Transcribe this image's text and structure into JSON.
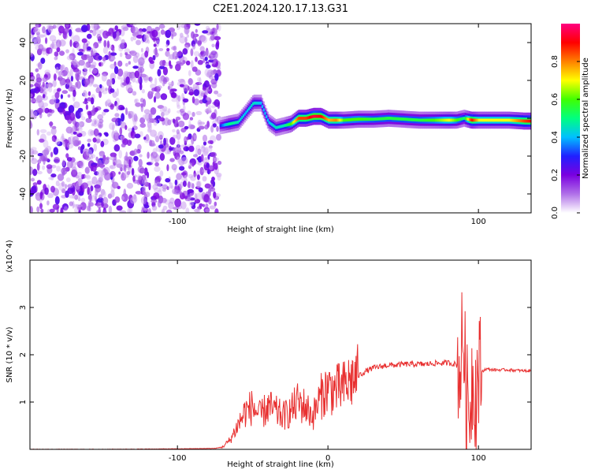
{
  "figure": {
    "title": "C2E1.2024.120.17.13.G31"
  },
  "chart_data": [
    {
      "type": "heatmap",
      "xlabel": "Height of straight line (km)",
      "ylabel": "Frequency (Hz)",
      "xlim": [
        -198,
        135
      ],
      "ylim": [
        -50,
        50
      ],
      "x_ticks": [
        -100,
        0,
        100
      ],
      "x_tick_labels": [
        "-100",
        "",
        "100"
      ],
      "y_ticks": [
        -40,
        -20,
        0,
        20,
        40
      ],
      "y_tick_labels": [
        "-40",
        "-20",
        "0",
        "20",
        "40"
      ],
      "colorbar": {
        "label": "Normalized spectral amplitude",
        "range": [
          0,
          1
        ],
        "ticks": [
          0.0,
          0.2,
          0.4,
          0.6,
          0.8
        ],
        "tick_labels": [
          "0.0",
          "0.2",
          "0.4",
          "0.6",
          "0.8"
        ],
        "colormap": [
          "#ffffff",
          "#b070e8",
          "#7a00e0",
          "#2020ff",
          "#00c0ff",
          "#00ff80",
          "#40ff00",
          "#ffff00",
          "#ff8000",
          "#ff0000",
          "#ff0080"
        ]
      },
      "noise_region_x": [
        -198,
        -72
      ],
      "signal_track": {
        "x": [
          -72,
          -66,
          -60,
          -55,
          -50,
          -45,
          -40,
          -35,
          -30,
          -25,
          -20,
          -15,
          -10,
          -5,
          0,
          5,
          10,
          20,
          30,
          40,
          50,
          60,
          70,
          80,
          85,
          90,
          95,
          100,
          110,
          120,
          130,
          135
        ],
        "freq": [
          -4,
          -3,
          -2,
          3,
          8,
          8,
          -2,
          -5,
          -4,
          -3,
          0,
          0,
          1,
          1,
          -1,
          -1,
          -1,
          -0.5,
          -0.5,
          0,
          -0.5,
          -1,
          -1,
          -1,
          -1,
          0,
          -1,
          -1,
          -1,
          -1,
          -1.5,
          -1.5
        ],
        "amplitude": [
          0.3,
          0.5,
          0.45,
          0.4,
          0.45,
          0.4,
          0.4,
          0.45,
          0.45,
          0.6,
          0.85,
          0.85,
          0.95,
          0.9,
          0.75,
          0.8,
          0.6,
          0.6,
          0.55,
          0.55,
          0.55,
          0.55,
          0.6,
          0.7,
          0.6,
          0.5,
          0.9,
          0.7,
          0.7,
          0.7,
          0.85,
          0.9
        ]
      },
      "grid": false
    },
    {
      "type": "line",
      "xlabel": "Height of straight line (km)",
      "ylabel": "SNR (10 * v/v)",
      "yscale_label": "(x10^4)",
      "xlim": [
        -198,
        135
      ],
      "ylim": [
        0,
        4
      ],
      "x_ticks": [
        -100,
        0,
        100
      ],
      "x_tick_labels": [
        "-100",
        "0",
        "100"
      ],
      "y_ticks": [
        1,
        2,
        3
      ],
      "y_tick_labels": [
        "1",
        "2",
        "3"
      ],
      "color": "#e83030",
      "series": [
        {
          "x": [
            -198,
            -150,
            -100,
            -75,
            -70,
            -65,
            -60,
            -55,
            -50,
            -45,
            -40,
            -35,
            -30,
            -25,
            -20,
            -15,
            -10,
            -5,
            0,
            5,
            10,
            15,
            20,
            25,
            30,
            35,
            40,
            45,
            50,
            55,
            60,
            65,
            70,
            75,
            80,
            85,
            88,
            90,
            92,
            94,
            96,
            98,
            100,
            105,
            110,
            115,
            120,
            125,
            130,
            135
          ],
          "values": [
            0.0,
            0.0,
            0.01,
            0.02,
            0.05,
            0.2,
            0.5,
            0.8,
            0.9,
            0.7,
            0.9,
            0.8,
            0.7,
            0.8,
            1.0,
            0.9,
            0.7,
            1.1,
            1.3,
            1.25,
            1.3,
            1.45,
            1.55,
            1.65,
            1.72,
            1.75,
            1.78,
            1.78,
            1.8,
            1.8,
            1.8,
            1.8,
            1.82,
            1.82,
            1.83,
            1.8,
            1.7,
            2.5,
            1.0,
            0.8,
            1.6,
            1.2,
            1.6,
            1.7,
            1.68,
            1.68,
            1.68,
            1.67,
            1.66,
            1.66
          ]
        }
      ],
      "grid": false
    }
  ]
}
